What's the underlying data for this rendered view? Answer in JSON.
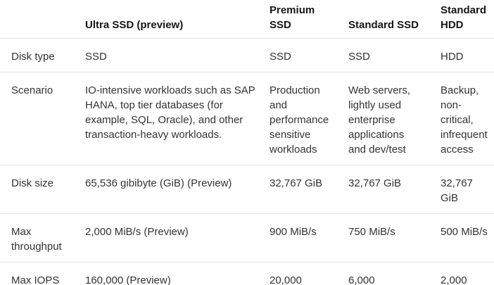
{
  "colors": {
    "background": "#ffffff",
    "header_text": "#161616",
    "body_text": "#333333",
    "row_border": "#e3e3e3"
  },
  "table": {
    "header": {
      "row_label": "",
      "ultra_ssd": "Ultra SSD (preview)",
      "premium_ssd": "Premium SSD",
      "standard_ssd": "Standard SSD",
      "standard_hdd": "Standard HDD"
    },
    "rows": [
      {
        "label": "Disk type",
        "values": [
          "SSD",
          "SSD",
          "SSD",
          "HDD"
        ]
      },
      {
        "label": "Scenario",
        "values": [
          "IO-intensive workloads such as SAP HANA, top tier databases (for example, SQL, Oracle), and other transaction-heavy workloads.",
          "Production and performance sensitive workloads",
          "Web servers, lightly used enterprise applications and dev/test",
          "Backup, non-critical, infrequent access"
        ]
      },
      {
        "label": "Disk size",
        "values": [
          "65,536 gibibyte (GiB) (Preview)",
          "32,767 GiB",
          "32,767 GiB",
          "32,767 GiB"
        ]
      },
      {
        "label": "Max throughput",
        "values": [
          "2,000 MiB/s (Preview)",
          "900 MiB/s",
          "750 MiB/s",
          "500 MiB/s"
        ]
      },
      {
        "label": "Max IOPS",
        "values": [
          "160,000 (Preview)",
          "20,000",
          "6,000",
          "2,000"
        ]
      }
    ]
  }
}
